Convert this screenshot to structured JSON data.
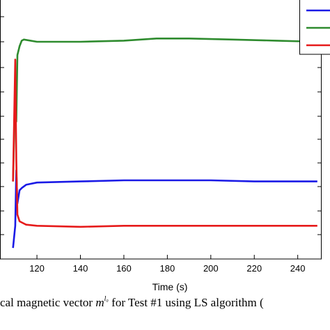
{
  "chart_data": {
    "type": "line",
    "xlabel": "Time (s)",
    "xlim": [
      103,
      251
    ],
    "ylim": [
      0,
      12
    ],
    "xticks": [
      120,
      140,
      160,
      180,
      200,
      220,
      240
    ],
    "grid": false,
    "legend": {
      "placement": "top-right",
      "entries": [
        "",
        "",
        ""
      ]
    },
    "series": [
      {
        "color": "#2e8b2e",
        "x": [
          109,
          110,
          110.5,
          111,
          112,
          113,
          114,
          120,
          140,
          160,
          175,
          190,
          210,
          230,
          249
        ],
        "y": [
          3.5,
          7.6,
          6.2,
          9.2,
          9.6,
          9.85,
          9.9,
          9.8,
          9.8,
          9.85,
          9.95,
          9.95,
          9.9,
          9.85,
          9.8
        ]
      },
      {
        "color": "#1a1ae6",
        "x": [
          109,
          110,
          110.5,
          111,
          112,
          113,
          115,
          120,
          140,
          160,
          180,
          200,
          220,
          249
        ],
        "y": [
          0.5,
          1.5,
          4.0,
          2.5,
          3.1,
          3.2,
          3.35,
          3.45,
          3.5,
          3.55,
          3.55,
          3.55,
          3.5,
          3.5
        ]
      },
      {
        "color": "#e61a1a",
        "x": [
          109,
          110,
          110.5,
          111,
          112,
          113,
          115,
          120,
          140,
          160,
          180,
          200,
          220,
          249
        ],
        "y": [
          3.5,
          9.0,
          4.5,
          2.0,
          1.7,
          1.65,
          1.55,
          1.5,
          1.45,
          1.5,
          1.5,
          1.5,
          1.5,
          1.5
        ]
      }
    ]
  },
  "caption": {
    "pre": "cal magnetic vector ",
    "symbol": "m",
    "sup": "l₀",
    "post": "  for Test #1 using LS algorithm ("
  }
}
